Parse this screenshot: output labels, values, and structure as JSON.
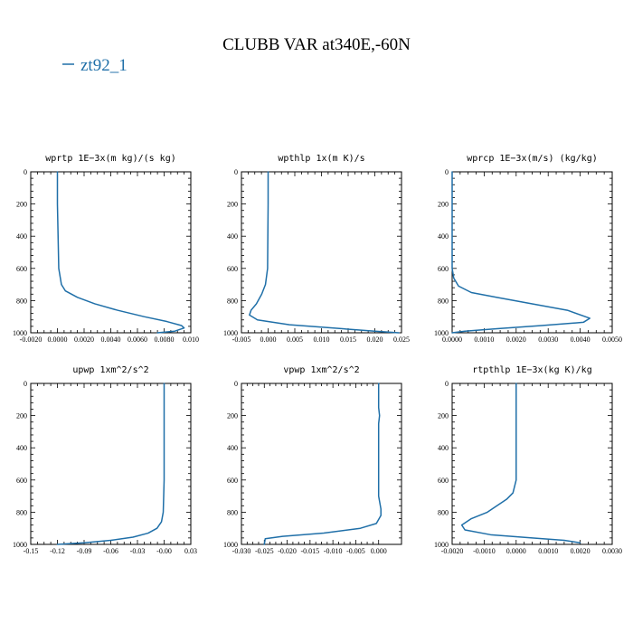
{
  "figure": {
    "title": "CLUBB VAR at340E,-60N",
    "legend_label": "zt92_1",
    "line_color": "#1f6fa8"
  },
  "chart_data": [
    {
      "type": "line",
      "title": "wprtp  1E−3x(m kg)/(s kg)",
      "xlim": [
        -0.002,
        0.01
      ],
      "ylim": [
        1000,
        0
      ],
      "xticks": [
        -0.002,
        0.0,
        0.002,
        0.004,
        0.006,
        0.008,
        0.01
      ],
      "xtick_labels": [
        "-0.0020",
        "0.0000",
        "0.0020",
        "0.0040",
        "0.0060",
        "0.0080",
        "0.010"
      ],
      "yticks": [
        0,
        200,
        400,
        600,
        800,
        1000
      ],
      "ytick_labels": [
        "0",
        "200",
        "400",
        "600",
        "800",
        "1000"
      ],
      "series": [
        {
          "x": [
            0.0,
            0.0,
            0.0001,
            0.0003,
            0.0006,
            0.0015,
            0.0028,
            0.0045,
            0.0065,
            0.0082,
            0.0093,
            0.0095,
            0.0088,
            0.0075
          ],
          "y": [
            0,
            200,
            600,
            700,
            740,
            780,
            820,
            860,
            900,
            930,
            955,
            970,
            990,
            1000
          ]
        }
      ]
    },
    {
      "type": "line",
      "title": "wpthlp  1x(m K)/s",
      "xlim": [
        -0.005,
        0.025
      ],
      "ylim": [
        1000,
        0
      ],
      "xticks": [
        -0.005,
        0.0,
        0.005,
        0.01,
        0.015,
        0.02,
        0.025
      ],
      "xtick_labels": [
        "-0.005",
        "0.000",
        "0.005",
        "0.010",
        "0.015",
        "0.020",
        "0.025"
      ],
      "yticks": [
        0,
        200,
        400,
        600,
        800,
        1000
      ],
      "ytick_labels": [
        "0",
        "200",
        "400",
        "600",
        "800",
        "1000"
      ],
      "series": [
        {
          "x": [
            0.0,
            0.0,
            -0.0001,
            -0.0005,
            -0.0012,
            -0.0022,
            -0.0032,
            -0.0035,
            -0.002,
            0.004,
            0.012,
            0.02,
            0.0245
          ],
          "y": [
            0,
            200,
            600,
            700,
            760,
            820,
            860,
            890,
            920,
            950,
            970,
            990,
            1000
          ]
        }
      ]
    },
    {
      "type": "line",
      "title": "wprcp  1E−3x(m/s) (kg/kg)",
      "xlim": [
        0.0,
        0.005
      ],
      "ylim": [
        1000,
        0
      ],
      "xticks": [
        0.0,
        0.001,
        0.002,
        0.003,
        0.004,
        0.005
      ],
      "xtick_labels": [
        "0.0000",
        "0.0010",
        "0.0020",
        "0.0030",
        "0.0040",
        "0.0050"
      ],
      "yticks": [
        0,
        200,
        400,
        600,
        800,
        1000
      ],
      "ytick_labels": [
        "0",
        "200",
        "400",
        "600",
        "800",
        "1000"
      ],
      "series": [
        {
          "x": [
            0.0,
            0.0,
            5e-05,
            0.0002,
            0.0006,
            0.0014,
            0.0025,
            0.0036,
            0.0043,
            0.0041,
            0.0028,
            0.0014,
            0.0004,
            0.0
          ],
          "y": [
            0,
            600,
            660,
            710,
            750,
            780,
            820,
            860,
            910,
            935,
            955,
            975,
            990,
            1000
          ]
        }
      ]
    },
    {
      "type": "line",
      "title": "upwp  1xm^2/s^2",
      "xlim": [
        -0.15,
        0.03
      ],
      "ylim": [
        1000,
        0
      ],
      "xticks": [
        -0.15,
        -0.12,
        -0.09,
        -0.06,
        -0.03,
        0.0,
        0.03
      ],
      "xtick_labels": [
        "-0.15",
        "-0.12",
        "-0.09",
        "-0.06",
        "-0.03",
        "-0.00",
        "0.03"
      ],
      "yticks": [
        0,
        200,
        400,
        600,
        800,
        1000
      ],
      "ytick_labels": [
        "0",
        "200",
        "400",
        "600",
        "800",
        "1000"
      ],
      "series": [
        {
          "x": [
            0.0,
            0.0,
            -0.001,
            -0.003,
            -0.008,
            -0.018,
            -0.035,
            -0.06,
            -0.09,
            -0.12
          ],
          "y": [
            0,
            600,
            800,
            860,
            900,
            930,
            955,
            975,
            990,
            1000
          ]
        }
      ]
    },
    {
      "type": "line",
      "title": "vpwp  1xm^2/s^2",
      "xlim": [
        -0.03,
        0.005
      ],
      "ylim": [
        1000,
        0
      ],
      "xticks": [
        -0.03,
        -0.025,
        -0.02,
        -0.015,
        -0.01,
        -0.005,
        0.0
      ],
      "xtick_labels": [
        "-0.030",
        "-0.025",
        "-0.020",
        "-0.015",
        "-0.010",
        "-0.005",
        "0.000"
      ],
      "yticks": [
        0,
        200,
        400,
        600,
        800,
        1000
      ],
      "ytick_labels": [
        "0",
        "200",
        "400",
        "600",
        "800",
        "1000"
      ],
      "series": [
        {
          "x": [
            0.0,
            0.0,
            0.0002,
            0.0,
            0.0,
            0.0005,
            0.0005,
            -0.0005,
            -0.004,
            -0.012,
            -0.021,
            -0.0248,
            -0.025
          ],
          "y": [
            0,
            150,
            200,
            250,
            700,
            780,
            820,
            870,
            900,
            930,
            950,
            965,
            1000
          ]
        }
      ]
    },
    {
      "type": "line",
      "title": "rtpthlp  1E−3x(kg K)/kg",
      "xlim": [
        -0.002,
        0.003
      ],
      "ylim": [
        1000,
        0
      ],
      "xticks": [
        -0.002,
        -0.001,
        0.0,
        0.001,
        0.002,
        0.003
      ],
      "xtick_labels": [
        "-0.0020",
        "-0.0010",
        "0.0000",
        "0.0010",
        "0.0020",
        "0.0030"
      ],
      "yticks": [
        0,
        200,
        400,
        600,
        800,
        1000
      ],
      "ytick_labels": [
        "0",
        "200",
        "400",
        "600",
        "800",
        "1000"
      ],
      "series": [
        {
          "x": [
            0.0,
            0.0,
            -0.0001,
            -0.0003,
            -0.0006,
            -0.0009,
            -0.0014,
            -0.0017,
            -0.0016,
            -0.0008,
            0.0005,
            0.0015,
            0.002
          ],
          "y": [
            0,
            600,
            680,
            720,
            760,
            800,
            840,
            880,
            910,
            940,
            960,
            975,
            990
          ]
        }
      ]
    }
  ]
}
